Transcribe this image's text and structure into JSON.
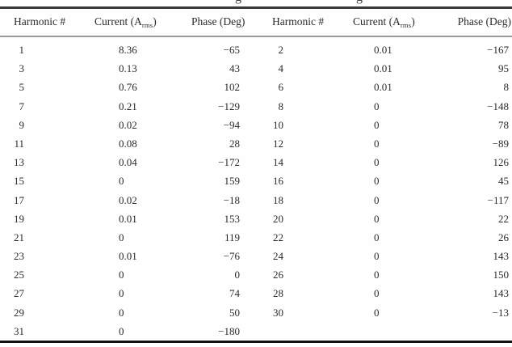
{
  "colors": {
    "background": "#fefefe",
    "text": "#2b2b2b",
    "rule_top": "#3a3a3a",
    "rule_header_divider": "#9a9a9a",
    "rule_bottom": "#121212"
  },
  "caption_fragments": [
    "g",
    "g"
  ],
  "header": {
    "harmonic": "Harmonic #",
    "current_prefix": "Current (A",
    "current_sub": "rms",
    "current_close": ")",
    "phase": "Phase (Deg)"
  },
  "rows": [
    {
      "h1": "1",
      "i1": "8.36",
      "p1": "−65",
      "h2": "2",
      "i2": "0.01",
      "p2": "−167"
    },
    {
      "h1": "3",
      "i1": "0.13",
      "p1": "43",
      "h2": "4",
      "i2": "0.01",
      "p2": "95"
    },
    {
      "h1": "5",
      "i1": "0.76",
      "p1": "102",
      "h2": "6",
      "i2": "0.01",
      "p2": "8"
    },
    {
      "h1": "7",
      "i1": "0.21",
      "p1": "−129",
      "h2": "8",
      "i2": "0",
      "p2": "−148"
    },
    {
      "h1": "9",
      "i1": "0.02",
      "p1": "−94",
      "h2": "10",
      "i2": "0",
      "p2": "78"
    },
    {
      "h1": "11",
      "i1": "0.08",
      "p1": "28",
      "h2": "12",
      "i2": "0",
      "p2": "−89"
    },
    {
      "h1": "13",
      "i1": "0.04",
      "p1": "−172",
      "h2": "14",
      "i2": "0",
      "p2": "126"
    },
    {
      "h1": "15",
      "i1": "0",
      "p1": "159",
      "h2": "16",
      "i2": "0",
      "p2": "45"
    },
    {
      "h1": "17",
      "i1": "0.02",
      "p1": "−18",
      "h2": "18",
      "i2": "0",
      "p2": "−117"
    },
    {
      "h1": "19",
      "i1": "0.01",
      "p1": "153",
      "h2": "20",
      "i2": "0",
      "p2": "22"
    },
    {
      "h1": "21",
      "i1": "0",
      "p1": "119",
      "h2": "22",
      "i2": "0",
      "p2": "26"
    },
    {
      "h1": "23",
      "i1": "0.01",
      "p1": "−76",
      "h2": "24",
      "i2": "0",
      "p2": "143"
    },
    {
      "h1": "25",
      "i1": "0",
      "p1": "0",
      "h2": "26",
      "i2": "0",
      "p2": "150"
    },
    {
      "h1": "27",
      "i1": "0",
      "p1": "74",
      "h2": "28",
      "i2": "0",
      "p2": "143"
    },
    {
      "h1": "29",
      "i1": "0",
      "p1": "50",
      "h2": "30",
      "i2": "0",
      "p2": "−13"
    },
    {
      "h1": "31",
      "i1": "0",
      "p1": "−180",
      "h2": "",
      "i2": "",
      "p2": ""
    }
  ]
}
